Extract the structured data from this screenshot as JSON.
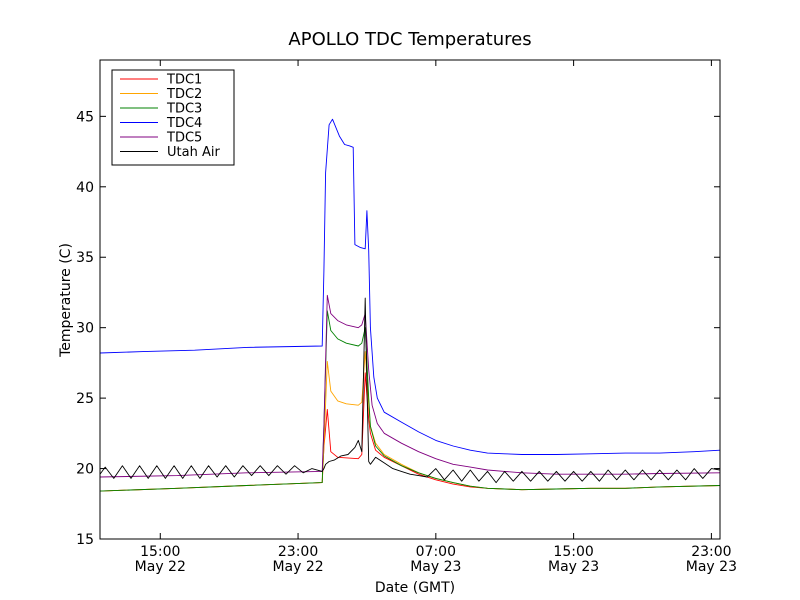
{
  "chart_data": {
    "type": "line",
    "title": "APOLLO TDC Temperatures",
    "xlabel": "Date (GMT)",
    "ylabel": "Temperature (C)",
    "x_unit": "hours since May 22 00:00 GMT",
    "xlim": [
      11.5,
      47.5
    ],
    "ylim": [
      15,
      49
    ],
    "yticks": [
      15,
      20,
      25,
      30,
      35,
      40,
      45
    ],
    "xticks": [
      {
        "value": 15,
        "line1": "15:00",
        "line2": "May 22"
      },
      {
        "value": 23,
        "line1": "23:00",
        "line2": "May 22"
      },
      {
        "value": 31,
        "line1": "07:00",
        "line2": "May 23"
      },
      {
        "value": 39,
        "line1": "15:00",
        "line2": "May 23"
      },
      {
        "value": 47,
        "line1": "23:00",
        "line2": "May 23"
      }
    ],
    "grid": false,
    "legend_position": "top-left",
    "series": [
      {
        "name": "TDC1",
        "color": "#ff0000",
        "x": [
          11.5,
          16,
          20,
          24.4,
          24.5,
          24.7,
          24.9,
          25.3,
          26.5,
          26.7,
          26.9,
          27.1,
          27.2,
          27.5,
          28,
          29,
          30,
          31,
          32,
          33,
          34,
          35,
          36,
          38,
          40,
          42,
          44,
          47.5
        ],
        "y": [
          18.4,
          18.6,
          18.8,
          19.0,
          21.5,
          24.2,
          21.2,
          20.8,
          20.7,
          21.0,
          26.8,
          23.5,
          22.5,
          21.3,
          20.8,
          20.2,
          19.6,
          19.2,
          18.9,
          18.7,
          18.6,
          18.55,
          18.5,
          18.55,
          18.6,
          18.6,
          18.7,
          18.8
        ]
      },
      {
        "name": "TDC2",
        "color": "#ffa500",
        "x": [
          11.5,
          16,
          20,
          24.4,
          24.5,
          24.7,
          24.9,
          25.3,
          25.8,
          26.5,
          26.7,
          26.9,
          27.1,
          27.2,
          27.5,
          28,
          29,
          30,
          31,
          32,
          33,
          34,
          35,
          36,
          38,
          40,
          42,
          44,
          47.5
        ],
        "y": [
          18.4,
          18.6,
          18.8,
          19.0,
          21.5,
          27.6,
          25.5,
          24.8,
          24.6,
          24.5,
          24.7,
          28.3,
          24.5,
          23.0,
          21.8,
          21.0,
          20.3,
          19.7,
          19.3,
          19.0,
          18.75,
          18.6,
          18.55,
          18.5,
          18.55,
          18.6,
          18.6,
          18.7,
          18.8
        ]
      },
      {
        "name": "TDC3",
        "color": "#008000",
        "x": [
          11.5,
          16,
          20,
          24.4,
          24.5,
          24.7,
          24.9,
          25.3,
          25.8,
          26.5,
          26.7,
          26.9,
          27.1,
          27.2,
          27.5,
          28,
          29,
          30,
          31,
          32,
          33,
          34,
          35,
          36,
          38,
          40,
          42,
          44,
          47.5
        ],
        "y": [
          18.4,
          18.6,
          18.8,
          19.0,
          23.0,
          31.2,
          29.8,
          29.2,
          28.9,
          28.7,
          28.9,
          30.0,
          25.0,
          23.0,
          21.6,
          20.9,
          20.2,
          19.7,
          19.3,
          19.0,
          18.75,
          18.6,
          18.55,
          18.5,
          18.55,
          18.6,
          18.6,
          18.7,
          18.8
        ]
      },
      {
        "name": "TDC4",
        "color": "#0000ff",
        "x": [
          11.5,
          14,
          17,
          20,
          24.4,
          24.5,
          24.6,
          24.8,
          25.0,
          25.4,
          25.7,
          26.0,
          26.2,
          26.3,
          26.6,
          26.9,
          27.0,
          27.1,
          27.2,
          27.4,
          27.6,
          28,
          29,
          30,
          31,
          32,
          33,
          34,
          35,
          36,
          38,
          40,
          42,
          44,
          46,
          47.5
        ],
        "y": [
          28.2,
          28.3,
          28.4,
          28.6,
          28.7,
          34.0,
          41.0,
          44.4,
          44.8,
          43.6,
          43.0,
          42.9,
          42.8,
          35.9,
          35.7,
          35.6,
          38.3,
          35.5,
          30.0,
          26.5,
          25.0,
          24.0,
          23.3,
          22.6,
          22.0,
          21.6,
          21.3,
          21.1,
          21.05,
          21.0,
          21.0,
          21.05,
          21.1,
          21.1,
          21.2,
          21.3
        ]
      },
      {
        "name": "TDC5",
        "color": "#800080",
        "x": [
          11.5,
          16,
          20,
          24.4,
          24.5,
          24.7,
          24.9,
          25.3,
          25.8,
          26.5,
          26.7,
          26.9,
          27.1,
          27.3,
          27.6,
          28,
          29,
          30,
          31,
          32,
          33,
          34,
          35,
          36,
          38,
          40,
          42,
          44,
          47.5
        ],
        "y": [
          19.4,
          19.5,
          19.7,
          19.8,
          23.0,
          32.3,
          31.0,
          30.5,
          30.2,
          30.0,
          30.2,
          31.0,
          27.0,
          24.5,
          23.2,
          22.5,
          21.8,
          21.2,
          20.7,
          20.3,
          20.1,
          19.9,
          19.8,
          19.7,
          19.6,
          19.6,
          19.6,
          19.65,
          19.7
        ]
      },
      {
        "name": "Utah Air",
        "color": "#000000",
        "x": [
          11.5,
          11.8,
          12.3,
          12.8,
          13.3,
          13.8,
          14.3,
          14.8,
          15.3,
          15.8,
          16.3,
          16.8,
          17.3,
          17.8,
          18.3,
          18.8,
          19.3,
          19.8,
          20.3,
          20.8,
          21.3,
          21.8,
          22.3,
          22.8,
          23.3,
          23.8,
          24.4,
          24.5,
          24.6,
          24.8,
          25.1,
          25.5,
          25.9,
          26.3,
          26.5,
          26.7,
          26.9,
          27.0,
          27.1,
          27.2,
          27.5,
          28,
          28.5,
          29,
          29.5,
          30,
          30.5,
          31,
          31.5,
          32,
          32.5,
          33,
          33.5,
          34,
          34.5,
          35,
          35.5,
          36,
          36.5,
          37,
          37.5,
          38,
          38.5,
          39,
          39.5,
          40,
          40.5,
          41,
          41.5,
          42,
          42.5,
          43,
          43.5,
          44,
          44.5,
          45,
          45.5,
          46,
          46.5,
          47,
          47.5
        ],
        "y": [
          19.6,
          20.1,
          19.3,
          20.2,
          19.3,
          20.2,
          19.3,
          20.2,
          19.3,
          20.2,
          19.3,
          20.2,
          19.3,
          20.2,
          19.4,
          20.2,
          19.4,
          20.2,
          19.5,
          20.2,
          19.5,
          20.2,
          19.6,
          20.2,
          19.7,
          20.0,
          19.8,
          20.0,
          20.3,
          20.5,
          20.6,
          20.9,
          21.0,
          21.5,
          22.0,
          21.2,
          32.1,
          26.0,
          20.5,
          20.3,
          20.8,
          20.4,
          20.0,
          19.8,
          19.6,
          19.5,
          19.4,
          20.0,
          19.2,
          19.9,
          19.1,
          19.9,
          19.1,
          19.8,
          19.0,
          19.8,
          19.1,
          19.8,
          19.1,
          19.8,
          19.1,
          19.8,
          19.1,
          19.8,
          19.1,
          19.8,
          19.1,
          19.9,
          19.2,
          19.9,
          19.2,
          19.9,
          19.2,
          19.9,
          19.2,
          19.9,
          19.2,
          20.0,
          19.3,
          20.0,
          19.9
        ]
      }
    ]
  }
}
